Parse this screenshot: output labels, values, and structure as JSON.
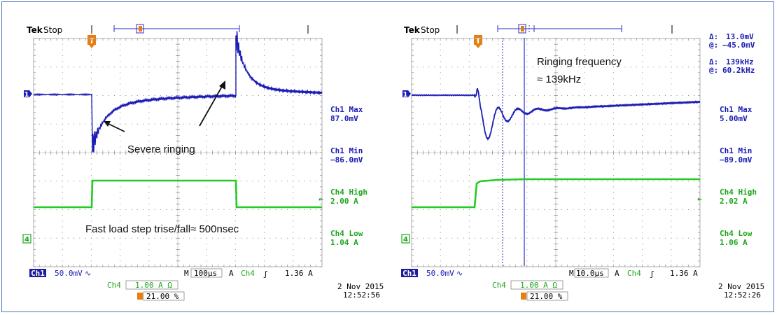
{
  "scope1": {
    "brand": "Tek",
    "status": "Stop",
    "trigger_marker": "T",
    "ch1_marker": "1",
    "ch4_marker": "4",
    "meas": [
      {
        "label": "Ch1 Max",
        "value": "87.0mV",
        "color": "#1c1cb4"
      },
      {
        "label": "Ch1 Min",
        "value": "−86.0mV",
        "color": "#1c1cb4"
      },
      {
        "label": "Ch4 High",
        "value": "2.00 A",
        "color": "#1ea61e"
      },
      {
        "label": "Ch4 Low",
        "value": "1.04 A",
        "color": "#1ea61e"
      }
    ],
    "annotations": {
      "ringing": "Severe ringing",
      "load_step": "Fast load step trise/fall≈ 500nsec"
    },
    "bottom": {
      "ch1_badge": "Ch1",
      "ch1_scale": "50.0mV",
      "m_label": "M",
      "timebase": "100µs",
      "trig_mode": "A",
      "trig_src": "Ch4",
      "trig_level": "1.36 A",
      "ch4_label": "Ch4",
      "ch4_scale": "1.00 A Ω",
      "trigger_pos": "21.00 %",
      "date": "2 Nov 2015",
      "time": "12:52:56"
    }
  },
  "scope2": {
    "brand": "Tek",
    "status": "Stop",
    "trigger_marker": "T",
    "ch1_marker": "1",
    "ch4_marker": "4",
    "cursor_readouts": [
      {
        "sym": "Δ:",
        "value": "13.0mV"
      },
      {
        "sym": "@:",
        "value": "−45.0mV"
      },
      {
        "sym": "Δ:",
        "value": "139kHz"
      },
      {
        "sym": "@:",
        "value": "60.2kHz"
      }
    ],
    "meas": [
      {
        "label": "Ch1 Max",
        "value": "5.00mV",
        "color": "#1c1cb4"
      },
      {
        "label": "Ch1 Min",
        "value": "−89.0mV",
        "color": "#1c1cb4"
      },
      {
        "label": "Ch4 High",
        "value": "2.02 A",
        "color": "#1ea61e"
      },
      {
        "label": "Ch4 Low",
        "value": "1.06 A",
        "color": "#1ea61e"
      }
    ],
    "annotations": {
      "ringing_freq_1": "Ringing frequency",
      "ringing_freq_2": "≈ 139kHz"
    },
    "bottom": {
      "ch1_badge": "Ch1",
      "ch1_scale": "50.0mV",
      "m_label": "M",
      "timebase": "10.0µs",
      "trig_mode": "A",
      "trig_src": "Ch4",
      "trig_level": "1.36 A",
      "ch4_label": "Ch4",
      "ch4_scale": "1.00 A Ω",
      "trigger_pos": "21.00 %",
      "date": "2 Nov 2015",
      "time": "12:52:26"
    }
  },
  "colors": {
    "ch1": "#1c1cb4",
    "ch4": "#22cc22",
    "frame": "#4a78b8",
    "trigger": "#e87d10"
  }
}
